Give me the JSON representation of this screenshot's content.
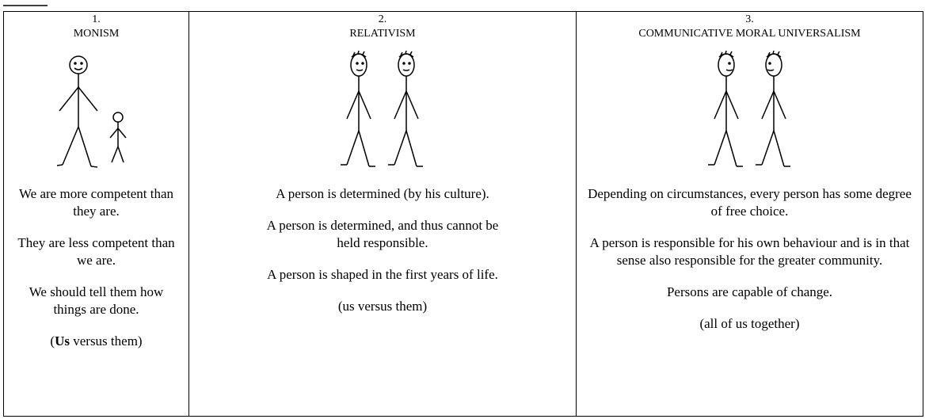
{
  "columns": [
    {
      "number": "1.",
      "title": "MONISM",
      "paragraphs": [
        "We are more competent than they are.",
        "They are less competent than we are.",
        "We should tell them how things are done."
      ],
      "closing_parts": [
        {
          "text": "("
        },
        {
          "text": "Us",
          "bold": true
        },
        {
          "text": " versus them)"
        }
      ]
    },
    {
      "number": "2.",
      "title": "RELATIVISM",
      "paragraphs": [
        "A person is determined (by his culture).",
        "A person is determined, and thus cannot be held responsible.",
        "A person is shaped in the first years of life."
      ],
      "closing_parts": [
        {
          "text": "(us versus them)"
        }
      ]
    },
    {
      "number": "3.",
      "title": "COMMUNICATIVE MORAL UNIVERSALISM",
      "paragraphs": [
        "Depending on circumstances, every person has some degree of free choice.",
        "A person is responsible for his own behaviour and is in that sense also responsible  for the greater community.",
        "Persons are capable of change."
      ],
      "closing_parts": [
        {
          "text": "(all of us together)"
        }
      ]
    }
  ]
}
